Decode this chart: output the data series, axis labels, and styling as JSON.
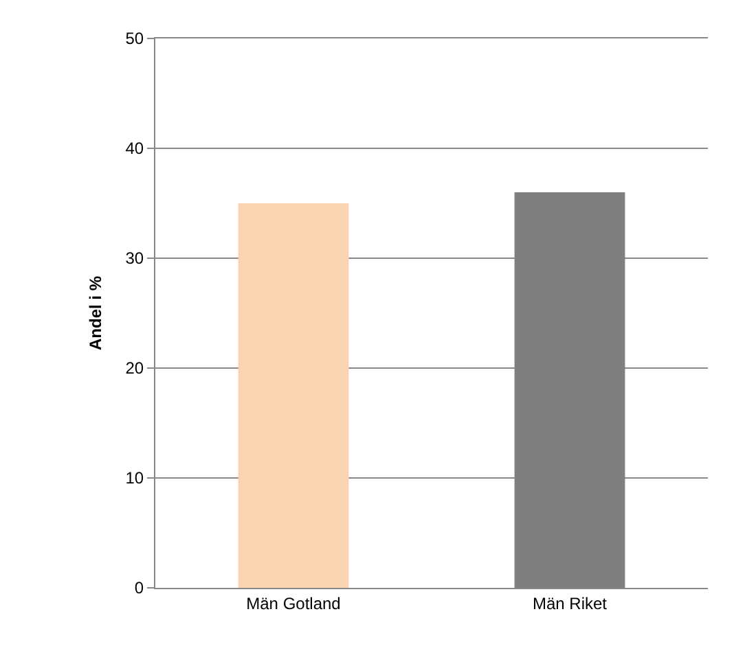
{
  "chart_data": {
    "type": "bar",
    "ylabel": "Andel i %",
    "categories": [
      "Män Gotland",
      "Män Riket"
    ],
    "values": [
      35,
      36
    ],
    "colors": [
      "#f9d4b2",
      "#7f7f7f"
    ],
    "ylim": [
      0,
      50
    ],
    "yticks": [
      0,
      10,
      20,
      30,
      40,
      50
    ],
    "grid": "y"
  }
}
